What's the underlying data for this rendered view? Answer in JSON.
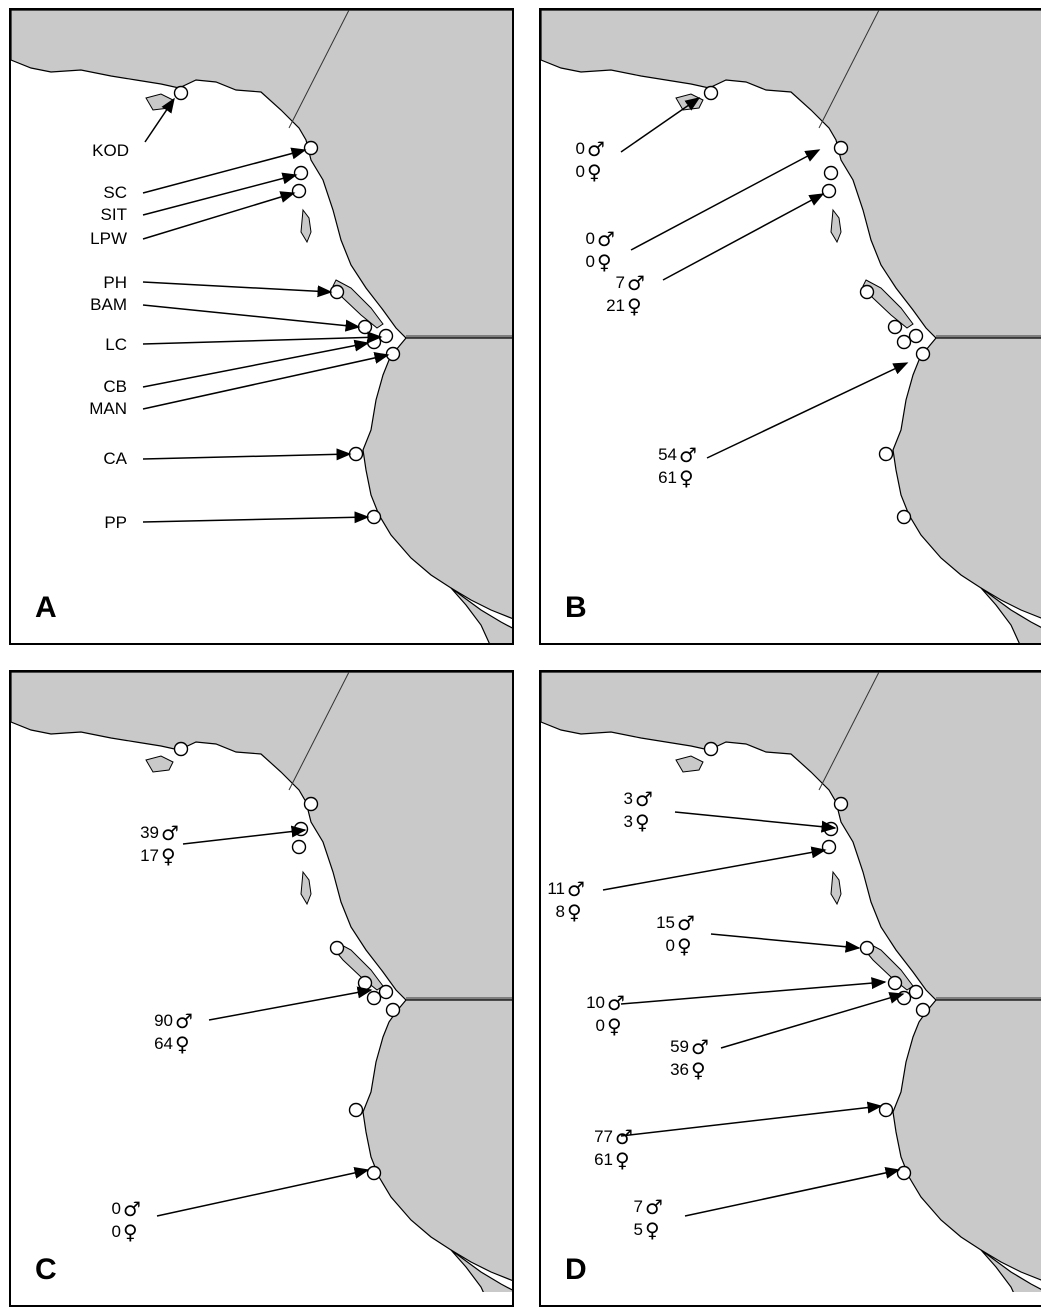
{
  "colors": {
    "land": "#c9c9c9",
    "water": "#ffffff",
    "coast": "#000000",
    "site": "#ffffff"
  },
  "symbols": {
    "male": "♂",
    "female": "♀"
  },
  "panels": [
    {
      "letter": "A",
      "labels": [
        "KOD",
        "SC",
        "SIT",
        "LPW",
        "PH",
        "BAM",
        "LC",
        "CB",
        "MAN",
        "CA",
        "PP"
      ]
    },
    {
      "letter": "B",
      "counts": [
        {
          "male": "0",
          "female": "0"
        },
        {
          "male": "0",
          "female": "0"
        },
        {
          "male": "7",
          "female": "21"
        },
        {
          "male": "54",
          "female": "61"
        }
      ]
    },
    {
      "letter": "C",
      "counts": [
        {
          "male": "39",
          "female": "17"
        },
        {
          "male": "90",
          "female": "64"
        },
        {
          "male": "0",
          "female": "0"
        }
      ]
    },
    {
      "letter": "D",
      "counts": [
        {
          "male": "3",
          "female": "3"
        },
        {
          "male": "11",
          "female": "8"
        },
        {
          "male": "15",
          "female": "0"
        },
        {
          "male": "10",
          "female": "0"
        },
        {
          "male": "59",
          "female": "36"
        },
        {
          "male": "77",
          "female": "61"
        },
        {
          "male": "7",
          "female": "5"
        }
      ]
    }
  ]
}
